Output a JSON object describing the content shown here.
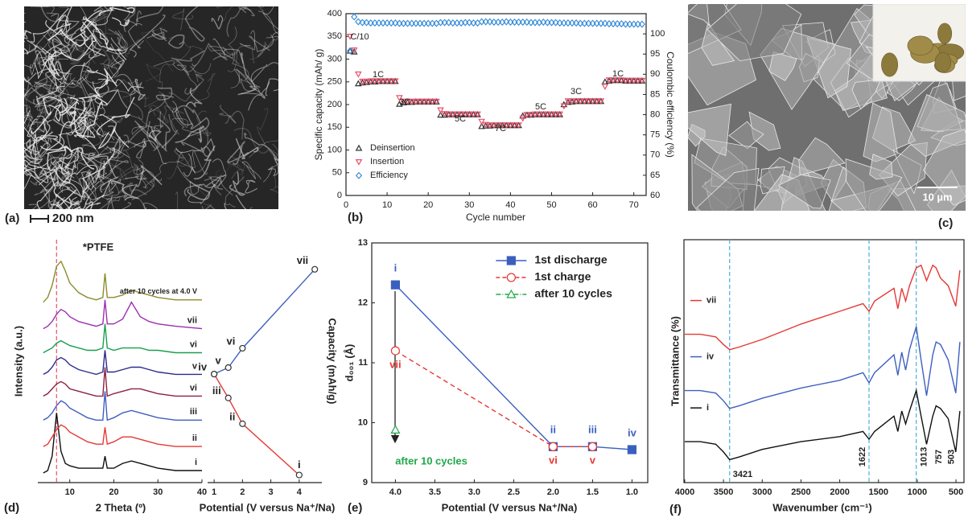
{
  "images": {
    "a": {
      "label": "(a)",
      "scale_bar": "200 nm"
    },
    "c": {
      "label": "(c)",
      "scale_bar": "10 µm"
    }
  },
  "chart_data": [
    {
      "type": "scatter",
      "panel_label": "(b)",
      "x_label": "Cycle number",
      "y_label": "Specific capacity (mAh/ g)",
      "y2_label": "Coulombic efficiency (%)",
      "x": [
        1,
        2,
        3,
        4,
        5,
        6,
        7,
        8,
        9,
        10,
        11,
        12,
        13,
        14,
        15,
        16,
        17,
        18,
        19,
        20,
        21,
        22,
        23,
        24,
        25,
        26,
        27,
        28,
        29,
        30,
        31,
        32,
        33,
        34,
        35,
        36,
        37,
        38,
        39,
        40,
        41,
        42,
        43,
        44,
        45,
        46,
        47,
        48,
        49,
        50,
        51,
        52,
        53,
        54,
        55,
        56,
        57,
        58,
        59,
        60,
        61,
        62,
        63,
        64,
        65,
        66,
        67,
        68,
        69,
        70,
        71,
        72
      ],
      "xlim": [
        0,
        73
      ],
      "xticks": [
        0,
        10,
        20,
        30,
        40,
        50,
        60,
        70
      ],
      "ylim": [
        0,
        400
      ],
      "yticks": [
        0,
        50,
        100,
        150,
        200,
        250,
        300,
        350,
        400
      ],
      "y2lim": [
        60,
        105
      ],
      "y2ticks": [
        60,
        65,
        70,
        75,
        80,
        85,
        90,
        95,
        100
      ],
      "frame": true,
      "legend": "center-left",
      "annotations": [
        "C/10",
        "1C",
        "3C",
        "5C",
        "7C",
        "5C",
        "3C",
        "1C"
      ],
      "series": [
        {
          "name": "Deinsertion",
          "color": "#333333",
          "marker": "triangle-up",
          "values": [
            318,
            316,
            246,
            248,
            249,
            250,
            250,
            251,
            251,
            251,
            251,
            251,
            201,
            204,
            205,
            205,
            206,
            206,
            206,
            206,
            206,
            206,
            177,
            177,
            178,
            178,
            178,
            178,
            178,
            178,
            178,
            178,
            152,
            153,
            153,
            154,
            154,
            154,
            154,
            154,
            154,
            154,
            175,
            177,
            177,
            178,
            178,
            178,
            178,
            178,
            178,
            178,
            200,
            205,
            206,
            207,
            207,
            207,
            207,
            207,
            207,
            207,
            250,
            252,
            253,
            253,
            253,
            252,
            252,
            252,
            252,
            252
          ]
        },
        {
          "name": "Insertion",
          "color": "#e8506a",
          "marker": "triangle-down",
          "values": [
            350,
            320,
            267,
            251,
            251,
            252,
            252,
            252,
            252,
            252,
            252,
            252,
            215,
            207,
            207,
            207,
            207,
            207,
            207,
            207,
            207,
            207,
            188,
            180,
            179,
            179,
            179,
            179,
            179,
            179,
            179,
            179,
            163,
            156,
            155,
            155,
            155,
            155,
            155,
            155,
            155,
            155,
            170,
            178,
            178,
            179,
            179,
            179,
            179,
            179,
            179,
            179,
            197,
            208,
            208,
            208,
            208,
            208,
            208,
            208,
            208,
            208,
            240,
            254,
            254,
            254,
            254,
            253,
            253,
            253,
            253,
            253
          ]
        },
        {
          "name": "Efficiency",
          "color": "#3b8fd9",
          "marker": "diamond",
          "axis": "y2",
          "values": [
            95.8,
            104.2,
            103.0,
            102.8,
            102.8,
            102.7,
            102.7,
            102.7,
            102.7,
            102.7,
            102.7,
            102.7,
            102.6,
            102.6,
            102.6,
            102.6,
            102.6,
            102.6,
            102.6,
            102.6,
            102.6,
            102.6,
            102.8,
            102.8,
            102.8,
            102.7,
            102.7,
            102.7,
            102.8,
            102.8,
            102.7,
            102.7,
            103.0,
            103.0,
            103.0,
            102.9,
            102.9,
            102.9,
            103.0,
            102.9,
            102.9,
            102.9,
            102.9,
            102.9,
            102.8,
            102.8,
            102.8,
            102.9,
            102.8,
            102.8,
            102.8,
            102.7,
            102.7,
            102.7,
            102.7,
            102.7,
            102.6,
            102.6,
            102.6,
            102.6,
            102.6,
            102.6,
            102.6,
            102.5,
            102.5,
            102.5,
            102.5,
            102.4,
            102.4,
            102.4,
            102.4,
            102.4
          ]
        }
      ]
    },
    {
      "type": "line",
      "panel_label": "(d)",
      "x_label": "2 Theta (º)",
      "y_label": "Intensity (a.u.)",
      "annotations": [
        "*PTFE"
      ],
      "vlines": [
        7
      ],
      "vline_color": "#e8506a",
      "frame": false,
      "x": [
        4,
        5,
        6,
        7,
        8,
        9,
        10,
        12,
        14,
        16,
        17.5,
        18,
        18.5,
        20,
        22,
        24,
        26,
        28,
        30,
        34,
        40
      ],
      "xlim": [
        2.75,
        40
      ],
      "xticks": [
        10,
        20,
        30,
        40
      ],
      "ylim": [
        -0.3,
        9.8
      ],
      "series": [
        {
          "name": "i",
          "color": "#111111",
          "values": [
            0.1,
            0.2,
            0.8,
            2.6,
            1.0,
            0.5,
            0.4,
            0.3,
            0.3,
            0.3,
            0.3,
            0.8,
            0.3,
            0.3,
            0.5,
            0.6,
            0.5,
            0.4,
            0.3,
            0.2,
            0.2
          ]
        },
        {
          "name": "ii",
          "color": "#e53935",
          "values": [
            1.2,
            1.3,
            1.6,
            1.9,
            2.1,
            2.0,
            1.8,
            1.6,
            1.4,
            1.3,
            1.3,
            2.0,
            1.3,
            1.4,
            1.6,
            1.6,
            1.5,
            1.4,
            1.3,
            1.2,
            1.2
          ]
        },
        {
          "name": "iii",
          "color": "#3f5fc0",
          "values": [
            2.3,
            2.4,
            2.6,
            2.9,
            3.1,
            3.0,
            2.8,
            2.6,
            2.4,
            2.3,
            2.3,
            3.5,
            2.3,
            2.4,
            2.6,
            2.7,
            2.6,
            2.5,
            2.4,
            2.3,
            2.3
          ]
        },
        {
          "name": "vi",
          "color": "#8b2240",
          "values": [
            3.3,
            3.4,
            3.6,
            3.8,
            3.9,
            3.8,
            3.6,
            3.5,
            3.4,
            3.3,
            3.3,
            4.5,
            3.3,
            3.4,
            3.5,
            3.6,
            3.6,
            3.5,
            3.4,
            3.3,
            3.3
          ]
        },
        {
          "name": "v",
          "color": "#2c2c8c",
          "values": [
            4.2,
            4.3,
            4.5,
            4.8,
            4.9,
            4.8,
            4.6,
            4.4,
            4.3,
            4.2,
            4.3,
            5.2,
            4.3,
            4.3,
            4.4,
            4.5,
            4.5,
            4.4,
            4.3,
            4.2,
            4.2
          ]
        },
        {
          "name": "vi",
          "color": "#1a9e50",
          "values": [
            5.1,
            5.2,
            5.3,
            5.5,
            5.6,
            5.5,
            5.4,
            5.3,
            5.2,
            5.2,
            5.3,
            6.3,
            5.3,
            5.2,
            5.3,
            5.3,
            5.3,
            5.2,
            5.2,
            5.1,
            5.1
          ]
        },
        {
          "name": "vii",
          "color": "#9c2fb0",
          "values": [
            6.1,
            6.2,
            6.4,
            6.7,
            6.9,
            6.8,
            6.6,
            6.4,
            6.3,
            6.2,
            6.3,
            7.3,
            6.3,
            6.3,
            6.5,
            7.2,
            6.6,
            6.4,
            6.3,
            6.2,
            6.1
          ]
        },
        {
          "name": "after 10 cycles at 4.0 V",
          "color": "#8c8c2c",
          "values": [
            7.2,
            7.4,
            7.9,
            8.7,
            8.9,
            8.5,
            8.0,
            7.6,
            7.4,
            7.3,
            7.4,
            8.4,
            7.4,
            7.4,
            7.5,
            7.7,
            7.6,
            7.5,
            7.4,
            7.3,
            7.3
          ]
        }
      ]
    },
    {
      "type": "line",
      "x_label": "Potential (V versus Na⁺/Na)",
      "y2_label": "Capacity (mAh/g)",
      "frame": false,
      "xlim": [
        0.77,
        4.8
      ],
      "xticks": [
        1,
        2,
        3,
        4
      ],
      "ylim": [
        -0.2,
        6.2
      ],
      "series": [
        {
          "color": "#e53935",
          "marker": "circle",
          "marker_color": "#333333",
          "x": [
            4.0,
            2.0,
            1.5,
            1.0
          ],
          "values": [
            0,
            1.35,
            2.03,
            2.66
          ],
          "point_labels": [
            "i",
            "ii",
            "iii",
            "iv"
          ]
        },
        {
          "color": "#3f5fc0",
          "marker": "circle",
          "marker_color": "#333333",
          "x": [
            1.0,
            1.5,
            2.0,
            4.55
          ],
          "values": [
            2.66,
            2.83,
            3.34,
            5.42
          ],
          "point_labels": [
            null,
            "v",
            "vi",
            "vii"
          ]
        }
      ]
    },
    {
      "type": "line",
      "panel_label": "(e)",
      "x_label": "Potential (V versus Na⁺/Na)",
      "y_label": "d₀₀₁ (Å)",
      "frame": true,
      "legend": "upper-right",
      "annotations": [
        "after 10 cycles"
      ],
      "annotation_color": "#22a84a",
      "xlim": [
        4.3,
        0.8
      ],
      "xticks": [
        {
          "value": 4,
          "label": "4.0"
        },
        3.5,
        {
          "value": 3,
          "label": "3.0"
        },
        2.5,
        {
          "value": 2,
          "label": "2.0"
        },
        1.5,
        {
          "value": 1,
          "label": "1.0"
        }
      ],
      "ylim": [
        9,
        13
      ],
      "yticks": [
        9,
        10,
        11,
        12,
        13
      ],
      "series": [
        {
          "name": "1st discharge",
          "color": "#3a5fbf",
          "marker": "square",
          "marker_filled": true,
          "x": [
            4,
            2,
            1.5,
            1
          ],
          "values": [
            12.3,
            9.6,
            9.6,
            9.55
          ],
          "point_labels": [
            "i",
            "ii",
            "iii",
            "iv"
          ]
        },
        {
          "name": "1st charge",
          "color": "#e53935",
          "marker": "circle",
          "dash": true,
          "x": [
            4,
            2,
            1.5
          ],
          "values": [
            11.2,
            9.6,
            9.6
          ],
          "point_labels": [
            "vii",
            "vi",
            "v"
          ]
        },
        {
          "name": "after 10 cycles",
          "color": "#22a84a",
          "marker": "triangle-up",
          "dash": true,
          "x": [
            4
          ],
          "values": [
            9.88
          ]
        }
      ]
    },
    {
      "type": "line",
      "panel_label": "(f)",
      "x_label": "Wavenumber (cm⁻¹)",
      "y_label": "Transmittance (%)",
      "frame": true,
      "vlines": [
        3421,
        1622,
        1013
      ],
      "vline_color": "#4ab0d8",
      "peak_labels": [
        3421,
        1622,
        1013,
        757,
        503
      ],
      "x": [
        4000,
        3800,
        3600,
        3500,
        3421,
        3300,
        3000,
        2500,
        2000,
        1700,
        1622,
        1550,
        1300,
        1250,
        1200,
        1150,
        1100,
        1013,
        950,
        880,
        800,
        757,
        700,
        600,
        503,
        450
      ],
      "xlim": [
        4010,
        397
      ],
      "xticks": [
        4000,
        3500,
        3000,
        2500,
        2000,
        1500,
        1000,
        500
      ],
      "ylim": [
        0,
        9.5
      ],
      "series": [
        {
          "name": "vii",
          "color": "#e53935",
          "values": [
            5.8,
            5.8,
            5.7,
            5.4,
            5.2,
            5.3,
            5.6,
            6.2,
            6.7,
            7.0,
            6.7,
            7.1,
            7.6,
            6.8,
            7.6,
            7.1,
            7.7,
            8.4,
            8.5,
            7.9,
            8.5,
            8.4,
            8.0,
            7.7,
            6.9,
            8.3
          ]
        },
        {
          "name": "iv",
          "color": "#3f5fc0",
          "values": [
            3.6,
            3.6,
            3.5,
            3.2,
            2.9,
            3.0,
            3.3,
            3.7,
            4.0,
            4.3,
            3.9,
            4.3,
            5.0,
            4.2,
            5.1,
            4.4,
            5.2,
            6.1,
            4.8,
            3.4,
            5.0,
            5.5,
            5.4,
            4.8,
            3.5,
            5.5
          ]
        },
        {
          "name": "i",
          "color": "#111111",
          "values": [
            1.6,
            1.6,
            1.5,
            1.2,
            0.9,
            1.0,
            1.3,
            1.6,
            1.8,
            2.0,
            1.7,
            2.0,
            2.6,
            2.0,
            2.8,
            2.3,
            2.8,
            3.6,
            2.6,
            1.5,
            2.6,
            3.0,
            2.9,
            2.5,
            1.2,
            2.8
          ]
        }
      ]
    }
  ]
}
